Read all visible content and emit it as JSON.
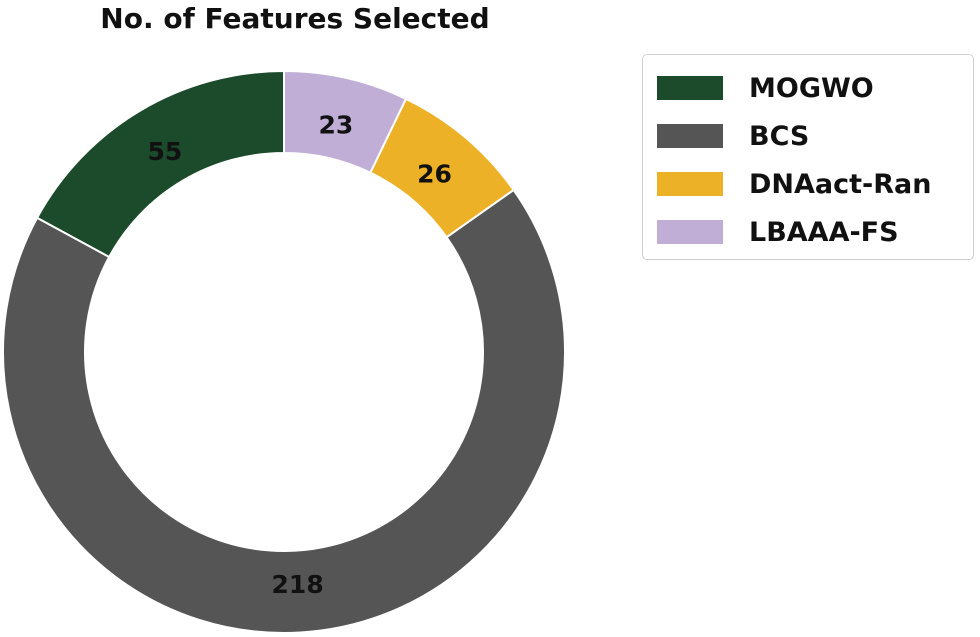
{
  "chart_data": {
    "type": "pie",
    "style": "donut",
    "title": "No. of Features Selected",
    "categories": [
      "MOGWO",
      "BCS",
      "DNAact-Ran",
      "LBAAA-FS"
    ],
    "values": [
      55,
      218,
      26,
      23
    ],
    "colors": [
      "#1b4b2a",
      "#555555",
      "#ecb127",
      "#c0aed6"
    ],
    "start_angle_deg": 90,
    "direction": "counterclockwise",
    "legend_position": "upper-right"
  }
}
